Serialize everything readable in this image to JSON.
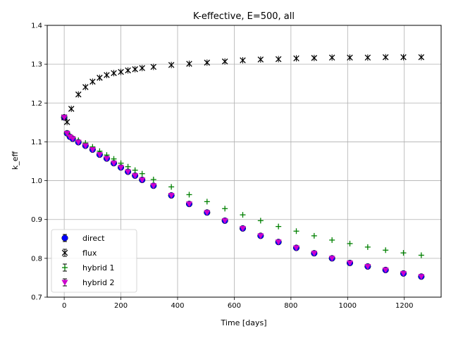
{
  "chart_data": {
    "type": "scatter",
    "title": "K-effective, E=500, all",
    "xlabel": "Time [days]",
    "ylabel": "k_eff",
    "xlim": [
      -60,
      1330
    ],
    "ylim": [
      0.7,
      1.4
    ],
    "xticks": [
      0,
      200,
      400,
      600,
      800,
      1000,
      1200
    ],
    "yticks": [
      0.7,
      0.8,
      0.9,
      1.0,
      1.1,
      1.2,
      1.3,
      1.4
    ],
    "xtick_labels": [
      "0",
      "200",
      "400",
      "600",
      "800",
      "1000",
      "1200"
    ],
    "ytick_labels": [
      "0.7",
      "0.8",
      "0.9",
      "1.0",
      "1.1",
      "1.2",
      "1.3",
      "1.4"
    ],
    "grid": true,
    "legend_position": "lower-left",
    "series": [
      {
        "name": "direct",
        "marker": "circle",
        "color": "#0000ff",
        "x": [
          0,
          10,
          20,
          30,
          50,
          75,
          100,
          125,
          150,
          175,
          200,
          225,
          250,
          275,
          315,
          378,
          441,
          504,
          567,
          630,
          693,
          756,
          819,
          882,
          945,
          1008,
          1071,
          1134,
          1197,
          1260
        ],
        "y": [
          1.163,
          1.122,
          1.113,
          1.108,
          1.099,
          1.09,
          1.08,
          1.067,
          1.057,
          1.045,
          1.034,
          1.023,
          1.013,
          1.002,
          0.987,
          0.962,
          0.94,
          0.918,
          0.897,
          0.877,
          0.858,
          0.842,
          0.827,
          0.813,
          0.8,
          0.788,
          0.779,
          0.77,
          0.761,
          0.753
        ]
      },
      {
        "name": "flux",
        "marker": "x",
        "color": "#000000",
        "x": [
          0,
          10,
          25,
          50,
          75,
          100,
          125,
          150,
          175,
          200,
          225,
          250,
          275,
          315,
          378,
          441,
          504,
          567,
          630,
          693,
          756,
          819,
          882,
          945,
          1008,
          1071,
          1134,
          1197,
          1260
        ],
        "y": [
          1.163,
          1.151,
          1.185,
          1.222,
          1.241,
          1.255,
          1.265,
          1.272,
          1.277,
          1.28,
          1.284,
          1.287,
          1.29,
          1.293,
          1.298,
          1.301,
          1.304,
          1.307,
          1.31,
          1.312,
          1.313,
          1.315,
          1.316,
          1.317,
          1.317,
          1.317,
          1.318,
          1.318,
          1.318
        ]
      },
      {
        "name": "hybrid 1",
        "marker": "plus",
        "color": "#008000",
        "x": [
          0,
          10,
          20,
          30,
          50,
          75,
          100,
          125,
          150,
          175,
          200,
          225,
          250,
          275,
          315,
          378,
          441,
          504,
          567,
          630,
          693,
          756,
          819,
          882,
          945,
          1008,
          1071,
          1134,
          1197,
          1260
        ],
        "y": [
          1.163,
          1.122,
          1.114,
          1.109,
          1.104,
          1.097,
          1.087,
          1.076,
          1.066,
          1.056,
          1.045,
          1.036,
          1.027,
          1.018,
          1.003,
          0.984,
          0.964,
          0.946,
          0.928,
          0.912,
          0.897,
          0.882,
          0.87,
          0.858,
          0.847,
          0.838,
          0.829,
          0.821,
          0.814,
          0.808
        ]
      },
      {
        "name": "hybrid 2",
        "marker": "triangle-down",
        "color": "#cc00cc",
        "x": [
          0,
          10,
          20,
          30,
          50,
          75,
          100,
          125,
          150,
          175,
          200,
          225,
          250,
          275,
          315,
          378,
          441,
          504,
          567,
          630,
          693,
          756,
          819,
          882,
          945,
          1008,
          1071,
          1134,
          1197,
          1260
        ],
        "y": [
          1.163,
          1.122,
          1.113,
          1.108,
          1.099,
          1.09,
          1.08,
          1.067,
          1.057,
          1.045,
          1.034,
          1.023,
          1.013,
          1.002,
          0.987,
          0.962,
          0.94,
          0.918,
          0.897,
          0.877,
          0.858,
          0.842,
          0.827,
          0.813,
          0.8,
          0.788,
          0.779,
          0.77,
          0.761,
          0.753
        ]
      }
    ]
  }
}
